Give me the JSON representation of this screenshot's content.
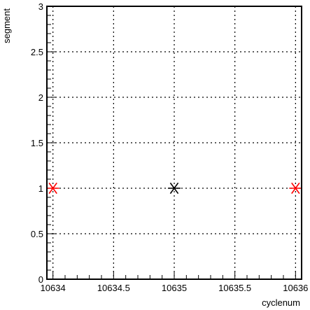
{
  "chart_data": {
    "type": "scatter",
    "title": "",
    "xlabel": "cyclenum",
    "ylabel": "segment",
    "xlim": [
      10633.95,
      10636.05
    ],
    "ylim": [
      0,
      3
    ],
    "grid": true,
    "x_ticks": [
      10634,
      10634.5,
      10635,
      10635.5,
      10636
    ],
    "x_tick_labels": [
      "10634",
      "10634.5",
      "10635",
      "10635.5",
      "10636"
    ],
    "y_ticks": [
      0,
      0.5,
      1,
      1.5,
      2,
      2.5,
      3
    ],
    "y_tick_labels": [
      "0",
      "0.5",
      "1",
      "1.5",
      "2",
      "2.5",
      "3"
    ],
    "points": [
      {
        "x": 10634,
        "y": 1,
        "color": "#ff0000"
      },
      {
        "x": 10635,
        "y": 1,
        "color": "#000000"
      },
      {
        "x": 10636,
        "y": 1,
        "color": "#ff0000"
      }
    ]
  }
}
